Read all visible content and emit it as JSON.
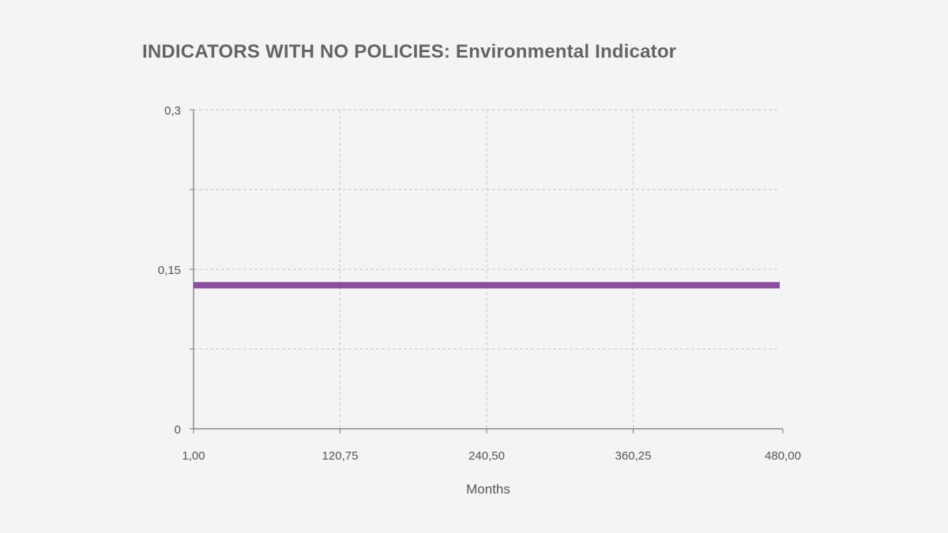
{
  "chart_data": {
    "type": "line",
    "title": "INDICATORS WITH NO POLICIES: Environmental Indicator",
    "xlabel": "Months",
    "ylabel": "",
    "xlim": [
      1,
      480
    ],
    "ylim": [
      0,
      0.3
    ],
    "x_ticks": [
      1,
      120.75,
      240.5,
      360.25,
      480
    ],
    "x_tick_labels": [
      "1,00",
      "120,75",
      "240,50",
      "360,25",
      "480,00"
    ],
    "y_ticks": [
      0,
      0.15,
      0.3
    ],
    "y_tick_labels": [
      "0",
      "0,15",
      "0,3"
    ],
    "y_gridlines": [
      0.075,
      0.15,
      0.225,
      0.3
    ],
    "grid": true,
    "series": [
      {
        "name": "Environmental Indicator",
        "color": "#8a4f9e",
        "x": [
          1,
          480
        ],
        "values": [
          0.135,
          0.135
        ]
      }
    ]
  },
  "colors": {
    "background": "#f4f4f4",
    "title": "#646464",
    "axis": "#777777",
    "grid": "#c9c9c9",
    "tick_text": "#555555"
  }
}
